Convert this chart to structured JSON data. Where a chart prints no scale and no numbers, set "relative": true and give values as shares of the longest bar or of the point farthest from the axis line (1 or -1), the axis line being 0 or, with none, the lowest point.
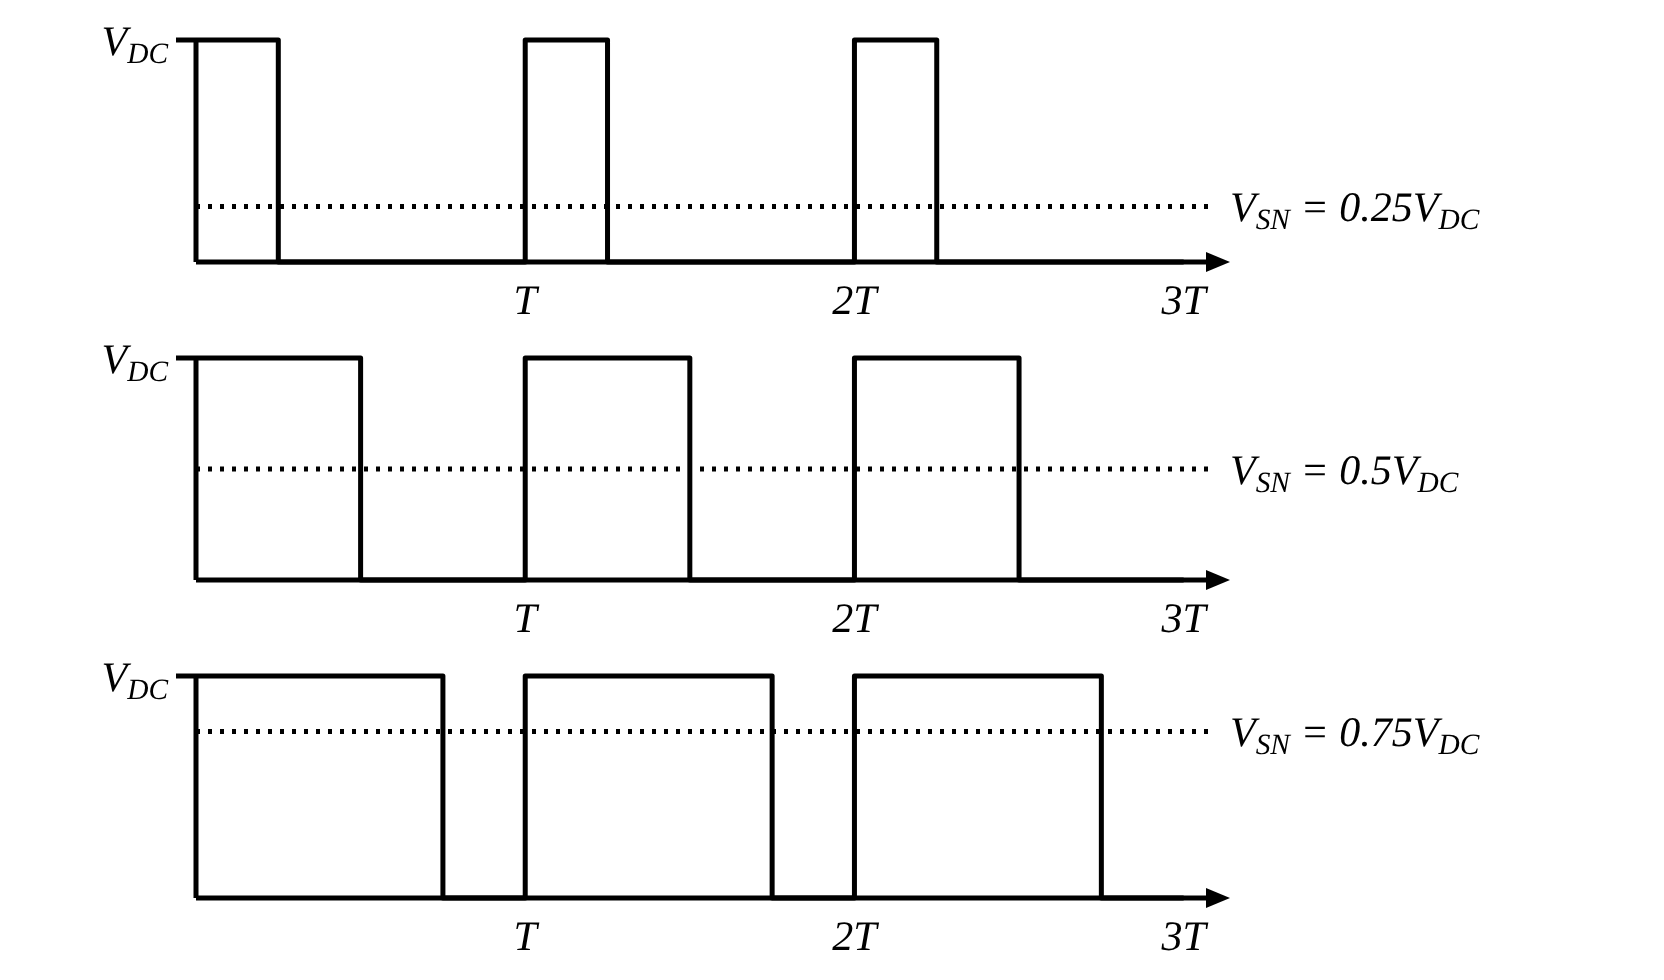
{
  "chart_data": [
    {
      "type": "step",
      "relative": true,
      "x": [
        0,
        0.25,
        1,
        1.25,
        2,
        2.25,
        3
      ],
      "series": [
        {
          "color": "#000000",
          "values": [
            1,
            0,
            1,
            0,
            1,
            0,
            0
          ]
        }
      ],
      "xlim": [
        0,
        3.08
      ],
      "xticks": [
        {
          "value": 1,
          "label": "T"
        },
        {
          "value": 2,
          "label": "2T"
        },
        {
          "value": 3,
          "label": "3T"
        }
      ],
      "annotations": [
        "V$_{DC}$"
      ],
      "ref_lines": [
        {
          "axis": "y",
          "value": 0.25,
          "label": "V$_{SN}$ = 0.25V$_{DC}$",
          "line_style": "dotted",
          "color": "#000000"
        }
      ],
      "marker": "none",
      "line_style": "solid"
    },
    {
      "type": "step",
      "relative": true,
      "x": [
        0,
        0.5,
        1,
        1.5,
        2,
        2.5,
        3
      ],
      "series": [
        {
          "color": "#000000",
          "values": [
            1,
            0,
            1,
            0,
            1,
            0,
            0
          ]
        }
      ],
      "xlim": [
        0,
        3.08
      ],
      "xticks": [
        {
          "value": 1,
          "label": "T"
        },
        {
          "value": 2,
          "label": "2T"
        },
        {
          "value": 3,
          "label": "3T"
        }
      ],
      "annotations": [
        "V$_{DC}$"
      ],
      "ref_lines": [
        {
          "axis": "y",
          "value": 0.5,
          "label": "V$_{SN}$ = 0.5V$_{DC}$",
          "line_style": "dotted",
          "color": "#000000"
        }
      ],
      "marker": "none",
      "line_style": "solid"
    },
    {
      "type": "step",
      "relative": true,
      "x": [
        0,
        0.75,
        1,
        1.75,
        2,
        2.75,
        3
      ],
      "series": [
        {
          "color": "#000000",
          "values": [
            1,
            0,
            1,
            0,
            1,
            0,
            0
          ]
        }
      ],
      "xlim": [
        0,
        3.08
      ],
      "xticks": [
        {
          "value": 1,
          "label": "T"
        },
        {
          "value": 2,
          "label": "2T"
        },
        {
          "value": 3,
          "label": "3T"
        }
      ],
      "annotations": [
        "V$_{DC}$"
      ],
      "ref_lines": [
        {
          "axis": "y",
          "value": 0.75,
          "label": "V$_{SN}$ = 0.75V$_{DC}$",
          "line_style": "dotted",
          "color": "#000000"
        }
      ],
      "marker": "none",
      "line_style": "solid"
    }
  ]
}
